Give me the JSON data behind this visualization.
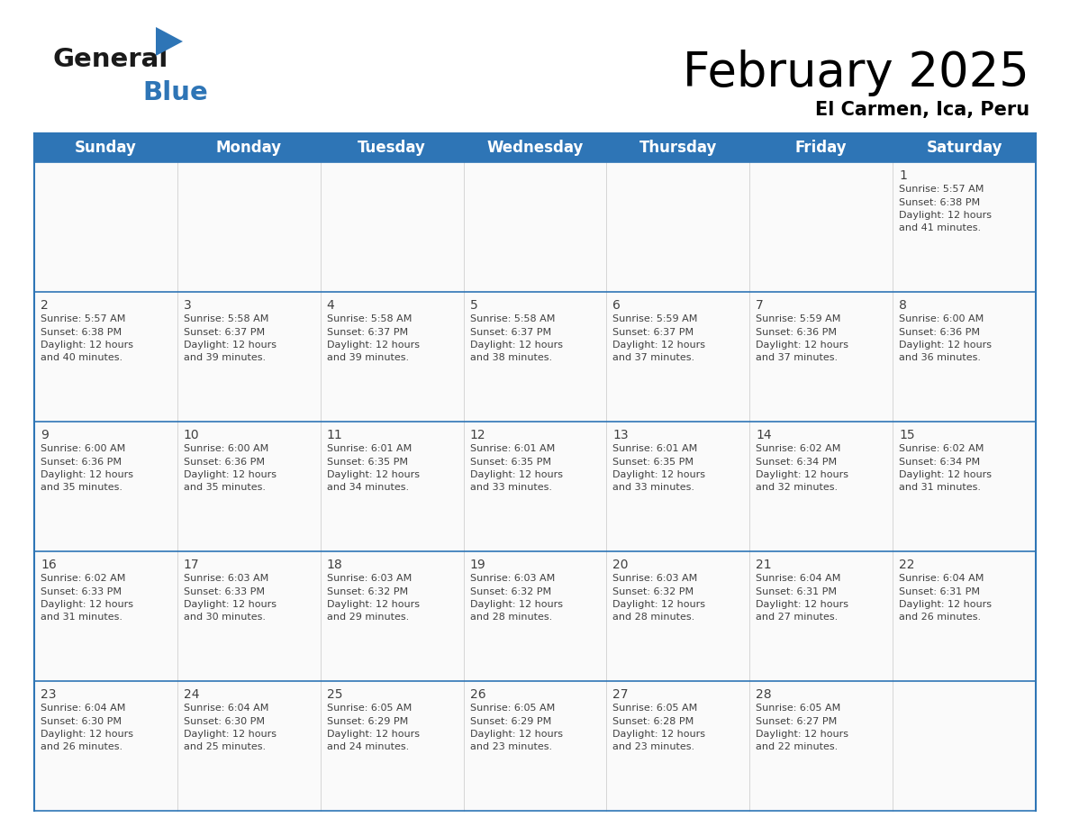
{
  "title": "February 2025",
  "subtitle": "El Carmen, Ica, Peru",
  "header_bg_color": "#2E75B6",
  "header_text_color": "#FFFFFF",
  "bg_color": "#FFFFFF",
  "day_headers": [
    "Sunday",
    "Monday",
    "Tuesday",
    "Wednesday",
    "Thursday",
    "Friday",
    "Saturday"
  ],
  "title_fontsize": 38,
  "subtitle_fontsize": 15,
  "header_fontsize": 12,
  "day_num_fontsize": 10,
  "cell_fontsize": 8.0,
  "line_color": "#2E75B6",
  "text_color": "#404040",
  "logo_general_color": "#1A1A1A",
  "logo_blue_color": "#2E75B6",
  "calendar_data": [
    [
      null,
      null,
      null,
      null,
      null,
      null,
      {
        "day": 1,
        "sunrise": "5:57 AM",
        "sunset": "6:38 PM",
        "daylight": "12 hours\nand 41 minutes."
      }
    ],
    [
      {
        "day": 2,
        "sunrise": "5:57 AM",
        "sunset": "6:38 PM",
        "daylight": "12 hours\nand 40 minutes."
      },
      {
        "day": 3,
        "sunrise": "5:58 AM",
        "sunset": "6:37 PM",
        "daylight": "12 hours\nand 39 minutes."
      },
      {
        "day": 4,
        "sunrise": "5:58 AM",
        "sunset": "6:37 PM",
        "daylight": "12 hours\nand 39 minutes."
      },
      {
        "day": 5,
        "sunrise": "5:58 AM",
        "sunset": "6:37 PM",
        "daylight": "12 hours\nand 38 minutes."
      },
      {
        "day": 6,
        "sunrise": "5:59 AM",
        "sunset": "6:37 PM",
        "daylight": "12 hours\nand 37 minutes."
      },
      {
        "day": 7,
        "sunrise": "5:59 AM",
        "sunset": "6:36 PM",
        "daylight": "12 hours\nand 37 minutes."
      },
      {
        "day": 8,
        "sunrise": "6:00 AM",
        "sunset": "6:36 PM",
        "daylight": "12 hours\nand 36 minutes."
      }
    ],
    [
      {
        "day": 9,
        "sunrise": "6:00 AM",
        "sunset": "6:36 PM",
        "daylight": "12 hours\nand 35 minutes."
      },
      {
        "day": 10,
        "sunrise": "6:00 AM",
        "sunset": "6:36 PM",
        "daylight": "12 hours\nand 35 minutes."
      },
      {
        "day": 11,
        "sunrise": "6:01 AM",
        "sunset": "6:35 PM",
        "daylight": "12 hours\nand 34 minutes."
      },
      {
        "day": 12,
        "sunrise": "6:01 AM",
        "sunset": "6:35 PM",
        "daylight": "12 hours\nand 33 minutes."
      },
      {
        "day": 13,
        "sunrise": "6:01 AM",
        "sunset": "6:35 PM",
        "daylight": "12 hours\nand 33 minutes."
      },
      {
        "day": 14,
        "sunrise": "6:02 AM",
        "sunset": "6:34 PM",
        "daylight": "12 hours\nand 32 minutes."
      },
      {
        "day": 15,
        "sunrise": "6:02 AM",
        "sunset": "6:34 PM",
        "daylight": "12 hours\nand 31 minutes."
      }
    ],
    [
      {
        "day": 16,
        "sunrise": "6:02 AM",
        "sunset": "6:33 PM",
        "daylight": "12 hours\nand 31 minutes."
      },
      {
        "day": 17,
        "sunrise": "6:03 AM",
        "sunset": "6:33 PM",
        "daylight": "12 hours\nand 30 minutes."
      },
      {
        "day": 18,
        "sunrise": "6:03 AM",
        "sunset": "6:32 PM",
        "daylight": "12 hours\nand 29 minutes."
      },
      {
        "day": 19,
        "sunrise": "6:03 AM",
        "sunset": "6:32 PM",
        "daylight": "12 hours\nand 28 minutes."
      },
      {
        "day": 20,
        "sunrise": "6:03 AM",
        "sunset": "6:32 PM",
        "daylight": "12 hours\nand 28 minutes."
      },
      {
        "day": 21,
        "sunrise": "6:04 AM",
        "sunset": "6:31 PM",
        "daylight": "12 hours\nand 27 minutes."
      },
      {
        "day": 22,
        "sunrise": "6:04 AM",
        "sunset": "6:31 PM",
        "daylight": "12 hours\nand 26 minutes."
      }
    ],
    [
      {
        "day": 23,
        "sunrise": "6:04 AM",
        "sunset": "6:30 PM",
        "daylight": "12 hours\nand 26 minutes."
      },
      {
        "day": 24,
        "sunrise": "6:04 AM",
        "sunset": "6:30 PM",
        "daylight": "12 hours\nand 25 minutes."
      },
      {
        "day": 25,
        "sunrise": "6:05 AM",
        "sunset": "6:29 PM",
        "daylight": "12 hours\nand 24 minutes."
      },
      {
        "day": 26,
        "sunrise": "6:05 AM",
        "sunset": "6:29 PM",
        "daylight": "12 hours\nand 23 minutes."
      },
      {
        "day": 27,
        "sunrise": "6:05 AM",
        "sunset": "6:28 PM",
        "daylight": "12 hours\nand 23 minutes."
      },
      {
        "day": 28,
        "sunrise": "6:05 AM",
        "sunset": "6:27 PM",
        "daylight": "12 hours\nand 22 minutes."
      },
      null
    ]
  ]
}
